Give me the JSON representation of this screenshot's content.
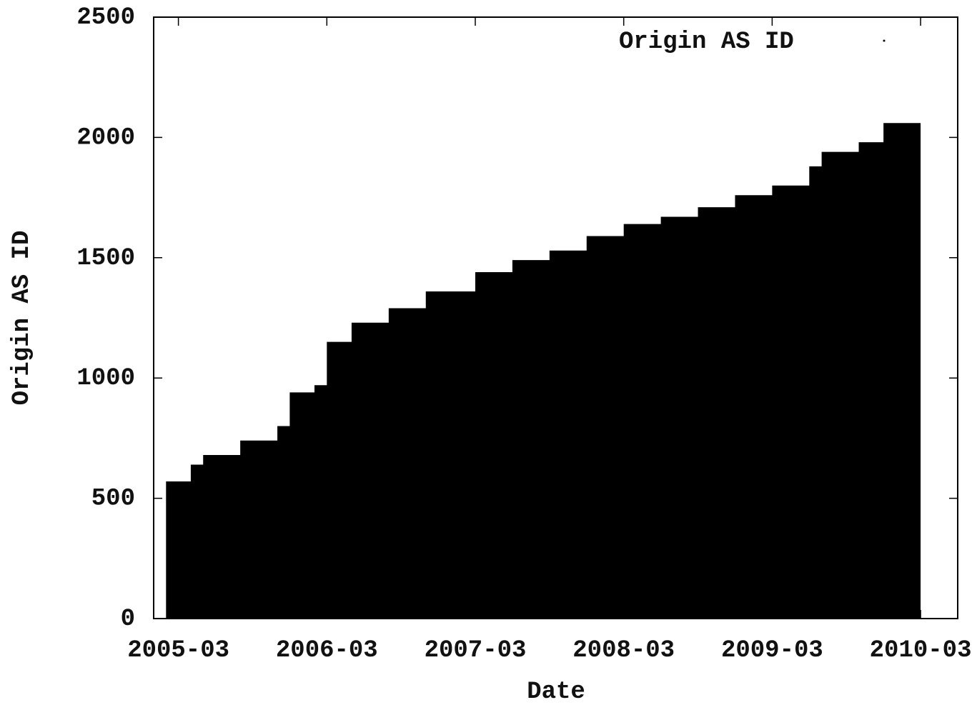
{
  "chart_data": {
    "type": "area",
    "x_label": "Date",
    "y_label": "Origin AS ID",
    "x": [
      "2005-02",
      "2005-04",
      "2005-05",
      "2005-08",
      "2005-11",
      "2005-12",
      "2006-02",
      "2006-03",
      "2006-05",
      "2006-08",
      "2006-11",
      "2007-03",
      "2007-06",
      "2007-09",
      "2007-12",
      "2008-03",
      "2008-06",
      "2008-09",
      "2008-12",
      "2009-03",
      "2009-06",
      "2009-07",
      "2009-10",
      "2009-12",
      "2010-03"
    ],
    "series": [
      {
        "name": "Origin AS ID",
        "color": "#000000",
        "values": [
          570,
          640,
          680,
          740,
          800,
          940,
          970,
          1150,
          1230,
          1290,
          1360,
          1440,
          1490,
          1530,
          1590,
          1640,
          1670,
          1710,
          1760,
          1800,
          1880,
          1940,
          1980,
          2060,
          2140
        ]
      }
    ],
    "xlim": [
      "2005-01",
      "2010-06"
    ],
    "xticks": [
      "2005-03",
      "2006-03",
      "2007-03",
      "2008-03",
      "2009-03",
      "2010-03"
    ],
    "ylim": [
      0,
      2500
    ],
    "yticks": [
      0,
      500,
      1000,
      1500,
      2000,
      2500
    ],
    "legend": "top-right"
  }
}
